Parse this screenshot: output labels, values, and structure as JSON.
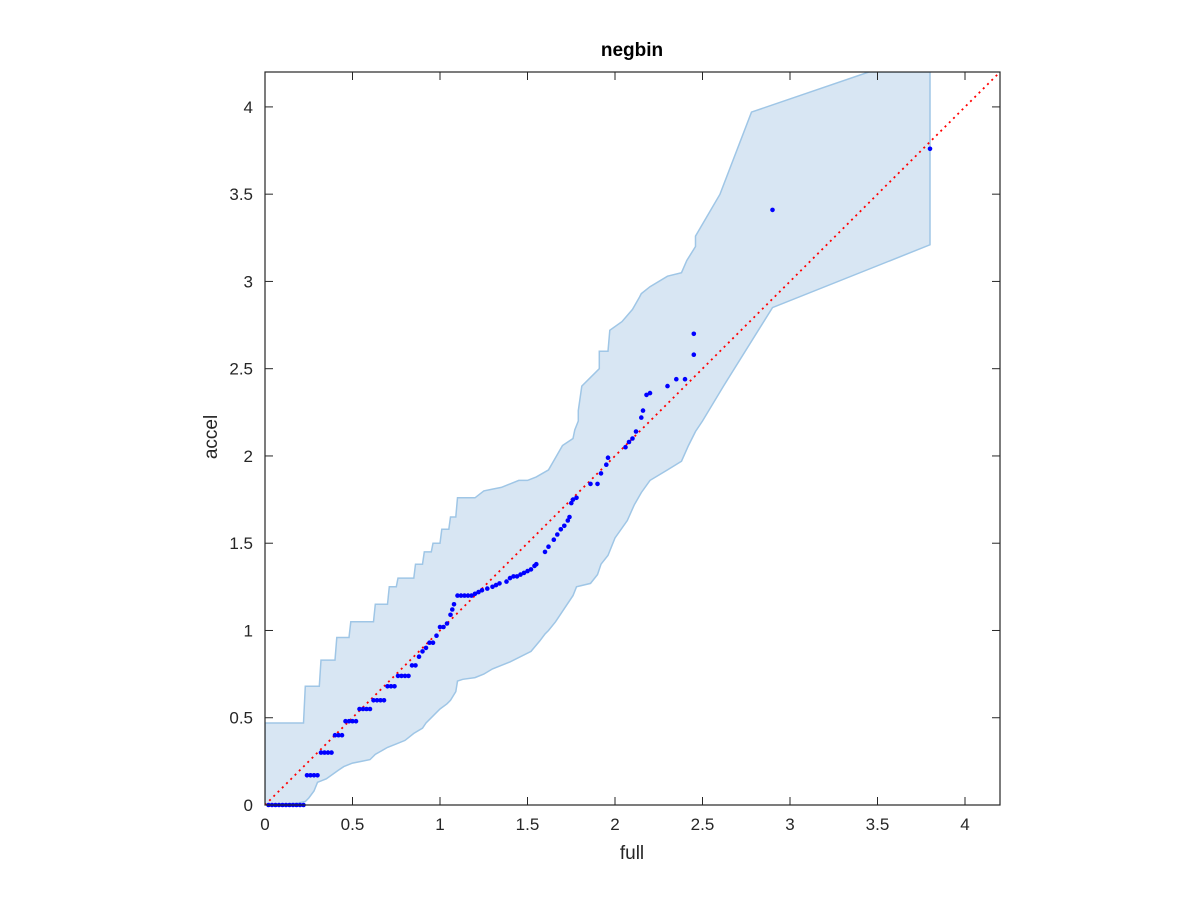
{
  "chart_data": {
    "type": "scatter",
    "title": "negbin",
    "xlabel": "full",
    "ylabel": "accel",
    "xlim": [
      0,
      4.2
    ],
    "ylim": [
      0,
      4.2
    ],
    "xticks": [
      0,
      0.5,
      1,
      1.5,
      2,
      2.5,
      3,
      3.5,
      4
    ],
    "yticks": [
      0,
      0.5,
      1,
      1.5,
      2,
      2.5,
      3,
      3.5,
      4
    ],
    "xtick_labels": [
      "0",
      "0.5",
      "1",
      "1.5",
      "2",
      "2.5",
      "3",
      "3.5",
      "4"
    ],
    "ytick_labels": [
      "0",
      "0.5",
      "1",
      "1.5",
      "2",
      "2.5",
      "3",
      "3.5",
      "4"
    ],
    "grid": false,
    "reference_line": {
      "x": [
        0,
        4.2
      ],
      "y": [
        0,
        4.2
      ],
      "color": "#ff0000",
      "style": "dotted"
    },
    "band": {
      "color": "#9fc6e6",
      "fill_color": "#d8e6f3",
      "upper": [
        [
          0,
          0.47
        ],
        [
          0.22,
          0.47
        ],
        [
          0.23,
          0.68
        ],
        [
          0.31,
          0.68
        ],
        [
          0.32,
          0.83
        ],
        [
          0.4,
          0.83
        ],
        [
          0.41,
          0.96
        ],
        [
          0.48,
          0.96
        ],
        [
          0.49,
          1.05
        ],
        [
          0.62,
          1.05
        ],
        [
          0.63,
          1.15
        ],
        [
          0.7,
          1.15
        ],
        [
          0.71,
          1.25
        ],
        [
          0.75,
          1.25
        ],
        [
          0.76,
          1.3
        ],
        [
          0.85,
          1.3
        ],
        [
          0.86,
          1.38
        ],
        [
          0.9,
          1.38
        ],
        [
          0.91,
          1.45
        ],
        [
          0.95,
          1.45
        ],
        [
          0.96,
          1.5
        ],
        [
          1.0,
          1.5
        ],
        [
          1.01,
          1.58
        ],
        [
          1.05,
          1.58
        ],
        [
          1.06,
          1.65
        ],
        [
          1.09,
          1.65
        ],
        [
          1.1,
          1.76
        ],
        [
          1.2,
          1.76
        ],
        [
          1.25,
          1.8
        ],
        [
          1.3,
          1.81
        ],
        [
          1.35,
          1.82
        ],
        [
          1.4,
          1.84
        ],
        [
          1.45,
          1.86
        ],
        [
          1.5,
          1.86
        ],
        [
          1.55,
          1.88
        ],
        [
          1.62,
          1.92
        ],
        [
          1.66,
          1.99
        ],
        [
          1.7,
          2.06
        ],
        [
          1.76,
          2.1
        ],
        [
          1.77,
          2.15
        ],
        [
          1.79,
          2.2
        ],
        [
          1.79,
          2.26
        ],
        [
          1.81,
          2.4
        ],
        [
          1.91,
          2.5
        ],
        [
          1.91,
          2.6
        ],
        [
          1.96,
          2.6
        ],
        [
          1.97,
          2.72
        ],
        [
          2.04,
          2.77
        ],
        [
          2.1,
          2.84
        ],
        [
          2.14,
          2.91
        ],
        [
          2.15,
          2.93
        ],
        [
          2.2,
          2.97
        ],
        [
          2.3,
          3.03
        ],
        [
          2.38,
          3.05
        ],
        [
          2.41,
          3.12
        ],
        [
          2.46,
          3.2
        ],
        [
          2.46,
          3.26
        ],
        [
          2.6,
          3.5
        ],
        [
          2.78,
          3.97
        ],
        [
          3.45,
          4.2
        ],
        [
          3.8,
          4.2
        ]
      ],
      "lower": [
        [
          3.8,
          3.21
        ],
        [
          2.9,
          2.85
        ],
        [
          2.62,
          2.4
        ],
        [
          2.5,
          2.2
        ],
        [
          2.46,
          2.14
        ],
        [
          2.42,
          2.06
        ],
        [
          2.38,
          1.97
        ],
        [
          2.3,
          1.92
        ],
        [
          2.2,
          1.86
        ],
        [
          2.15,
          1.79
        ],
        [
          2.11,
          1.72
        ],
        [
          2.07,
          1.63
        ],
        [
          2.0,
          1.53
        ],
        [
          1.96,
          1.43
        ],
        [
          1.92,
          1.38
        ],
        [
          1.9,
          1.32
        ],
        [
          1.86,
          1.27
        ],
        [
          1.78,
          1.25
        ],
        [
          1.76,
          1.2
        ],
        [
          1.7,
          1.11
        ],
        [
          1.66,
          1.05
        ],
        [
          1.62,
          1.0
        ],
        [
          1.6,
          0.98
        ],
        [
          1.57,
          0.94
        ],
        [
          1.52,
          0.88
        ],
        [
          1.4,
          0.82
        ],
        [
          1.3,
          0.78
        ],
        [
          1.25,
          0.75
        ],
        [
          1.2,
          0.73
        ],
        [
          1.13,
          0.72
        ],
        [
          1.1,
          0.71
        ],
        [
          1.09,
          0.65
        ],
        [
          1.06,
          0.6
        ],
        [
          1.04,
          0.58
        ],
        [
          1.0,
          0.55
        ],
        [
          0.95,
          0.5
        ],
        [
          0.92,
          0.47
        ],
        [
          0.9,
          0.44
        ],
        [
          0.85,
          0.41
        ],
        [
          0.8,
          0.37
        ],
        [
          0.75,
          0.35
        ],
        [
          0.7,
          0.33
        ],
        [
          0.63,
          0.29
        ],
        [
          0.6,
          0.26
        ],
        [
          0.55,
          0.25
        ],
        [
          0.5,
          0.24
        ],
        [
          0.45,
          0.22
        ],
        [
          0.42,
          0.2
        ],
        [
          0.35,
          0.15
        ],
        [
          0.3,
          0.13
        ],
        [
          0.28,
          0.08
        ],
        [
          0.25,
          0.04
        ],
        [
          0.23,
          0.02
        ],
        [
          0.18,
          0.01
        ],
        [
          0.0,
          0.0
        ]
      ]
    },
    "series": [
      {
        "marker_color": "#0000ff",
        "points": [
          [
            0.02,
            0.0
          ],
          [
            0.04,
            0.0
          ],
          [
            0.06,
            0.0
          ],
          [
            0.08,
            0.0
          ],
          [
            0.1,
            0.0
          ],
          [
            0.12,
            0.0
          ],
          [
            0.14,
            0.0
          ],
          [
            0.16,
            0.0
          ],
          [
            0.18,
            0.0
          ],
          [
            0.2,
            0.0
          ],
          [
            0.22,
            0.0
          ],
          [
            0.24,
            0.17
          ],
          [
            0.26,
            0.17
          ],
          [
            0.28,
            0.17
          ],
          [
            0.3,
            0.17
          ],
          [
            0.32,
            0.3
          ],
          [
            0.34,
            0.3
          ],
          [
            0.36,
            0.3
          ],
          [
            0.38,
            0.3
          ],
          [
            0.4,
            0.4
          ],
          [
            0.42,
            0.4
          ],
          [
            0.44,
            0.4
          ],
          [
            0.46,
            0.48
          ],
          [
            0.48,
            0.48
          ],
          [
            0.5,
            0.48
          ],
          [
            0.52,
            0.48
          ],
          [
            0.54,
            0.55
          ],
          [
            0.56,
            0.55
          ],
          [
            0.58,
            0.55
          ],
          [
            0.6,
            0.55
          ],
          [
            0.62,
            0.6
          ],
          [
            0.64,
            0.6
          ],
          [
            0.66,
            0.6
          ],
          [
            0.68,
            0.6
          ],
          [
            0.7,
            0.68
          ],
          [
            0.72,
            0.68
          ],
          [
            0.74,
            0.68
          ],
          [
            0.76,
            0.74
          ],
          [
            0.78,
            0.74
          ],
          [
            0.8,
            0.74
          ],
          [
            0.82,
            0.74
          ],
          [
            0.84,
            0.8
          ],
          [
            0.86,
            0.8
          ],
          [
            0.88,
            0.85
          ],
          [
            0.9,
            0.88
          ],
          [
            0.92,
            0.9
          ],
          [
            0.94,
            0.93
          ],
          [
            0.96,
            0.93
          ],
          [
            0.98,
            0.97
          ],
          [
            1.0,
            1.02
          ],
          [
            1.02,
            1.02
          ],
          [
            1.04,
            1.04
          ],
          [
            1.06,
            1.09
          ],
          [
            1.07,
            1.12
          ],
          [
            1.08,
            1.15
          ],
          [
            1.1,
            1.2
          ],
          [
            1.12,
            1.2
          ],
          [
            1.14,
            1.2
          ],
          [
            1.16,
            1.2
          ],
          [
            1.18,
            1.2
          ],
          [
            1.2,
            1.21
          ],
          [
            1.22,
            1.22
          ],
          [
            1.24,
            1.23
          ],
          [
            1.27,
            1.24
          ],
          [
            1.3,
            1.25
          ],
          [
            1.32,
            1.26
          ],
          [
            1.34,
            1.27
          ],
          [
            1.38,
            1.28
          ],
          [
            1.4,
            1.3
          ],
          [
            1.42,
            1.31
          ],
          [
            1.44,
            1.31
          ],
          [
            1.46,
            1.32
          ],
          [
            1.48,
            1.33
          ],
          [
            1.5,
            1.34
          ],
          [
            1.52,
            1.35
          ],
          [
            1.54,
            1.37
          ],
          [
            1.55,
            1.38
          ],
          [
            1.6,
            1.45
          ],
          [
            1.62,
            1.48
          ],
          [
            1.65,
            1.52
          ],
          [
            1.67,
            1.55
          ],
          [
            1.69,
            1.58
          ],
          [
            1.71,
            1.6
          ],
          [
            1.73,
            1.63
          ],
          [
            1.74,
            1.65
          ],
          [
            1.75,
            1.73
          ],
          [
            1.76,
            1.75
          ],
          [
            1.78,
            1.76
          ],
          [
            1.86,
            1.84
          ],
          [
            1.9,
            1.84
          ],
          [
            1.92,
            1.9
          ],
          [
            1.95,
            1.95
          ],
          [
            1.96,
            1.99
          ],
          [
            2.06,
            2.05
          ],
          [
            2.08,
            2.08
          ],
          [
            2.1,
            2.1
          ],
          [
            2.12,
            2.14
          ],
          [
            2.15,
            2.22
          ],
          [
            2.16,
            2.26
          ],
          [
            2.18,
            2.35
          ],
          [
            2.2,
            2.36
          ],
          [
            2.3,
            2.4
          ],
          [
            2.35,
            2.44
          ],
          [
            2.4,
            2.44
          ],
          [
            2.45,
            2.58
          ],
          [
            2.45,
            2.7
          ],
          [
            2.9,
            3.41
          ],
          [
            3.8,
            3.76
          ]
        ]
      }
    ]
  }
}
